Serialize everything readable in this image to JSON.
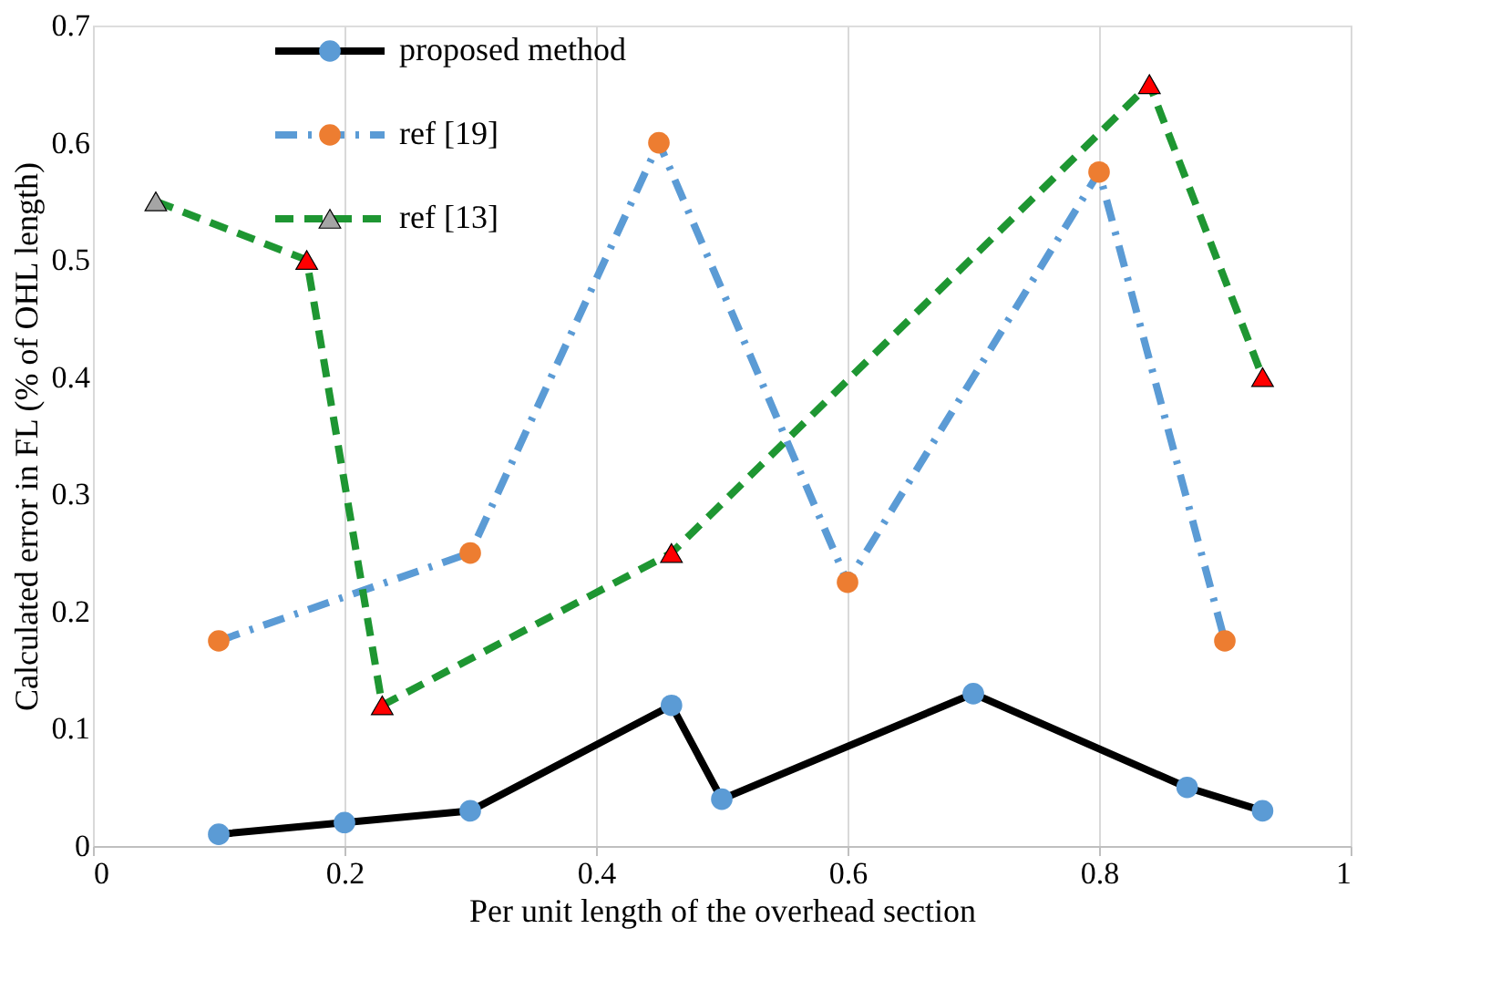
{
  "chart_data": {
    "type": "line",
    "xlabel": "Per unit length of the overhead section",
    "ylabel": "Calculated  error in FL (% of OHL length)",
    "xlim": [
      0,
      1
    ],
    "xticks": [
      0,
      0.2,
      0.4,
      0.6,
      0.8,
      1
    ],
    "ylim": [
      0,
      0.7
    ],
    "yticks": [
      0,
      0.1,
      0.2,
      0.3,
      0.4,
      0.5,
      0.6,
      0.7
    ],
    "grid": "x",
    "legend": "top left",
    "series": [
      {
        "name": "proposed method",
        "color": "#000000",
        "line_style": "solid",
        "marker": "circle",
        "x": [
          0.1,
          0.2,
          0.3,
          0.46,
          0.5,
          0.7,
          0.87,
          0.93
        ],
        "values": [
          0.01,
          0.02,
          0.03,
          0.12,
          0.04,
          0.13,
          0.05,
          0.03
        ],
        "colors": [
          "#5b9bd5",
          "#5b9bd5",
          "#5b9bd5",
          "#5b9bd5",
          "#5b9bd5",
          "#5b9bd5",
          "#5b9bd5",
          "#5b9bd5"
        ]
      },
      {
        "name": "ref [19]",
        "color": "#5b9bd5",
        "line_style": "dashdot",
        "marker": "circle",
        "x": [
          0.1,
          0.3,
          0.45,
          0.6,
          0.8,
          0.9
        ],
        "values": [
          0.175,
          0.25,
          0.6,
          0.225,
          0.575,
          0.175
        ],
        "colors": [
          "#ed7d31",
          "#ed7d31",
          "#ed7d31",
          "#ed7d31",
          "#ed7d31",
          "#ed7d31"
        ]
      },
      {
        "name": "ref [13]",
        "color": "#1e9632",
        "line_style": "dashed",
        "marker": "triangle",
        "x": [
          0.05,
          0.17,
          0.23,
          0.46,
          0.84,
          0.93
        ],
        "values": [
          0.55,
          0.5,
          0.12,
          0.25,
          0.65,
          0.4
        ],
        "colors": [
          "#a5a5a5",
          "#ff0000",
          "#ff0000",
          "#ff0000",
          "#ff0000",
          "#ff0000"
        ]
      }
    ]
  }
}
